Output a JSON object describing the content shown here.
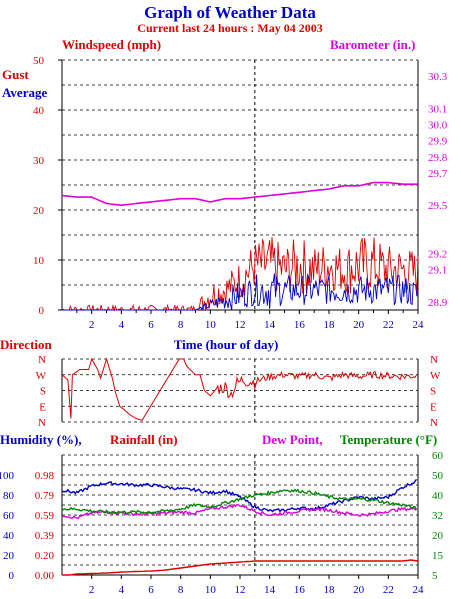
{
  "header": {
    "title": "Graph of Weather Data",
    "subtitle": "Current last 24 hours : May 04 2003"
  },
  "colors": {
    "red": "#dd0000",
    "blue": "#0000cc",
    "magenta": "#dd00dd",
    "green": "#008800",
    "grid": "#000000"
  },
  "chart_data": [
    {
      "type": "line",
      "name": "wind-barometer",
      "labels": {
        "left_title": "Windspeed (mph)",
        "right_title": "Barometer (in.)",
        "gust": "Gust",
        "average": "Average",
        "xlabel": "Time (hour of day)"
      },
      "x_ticks": [
        "2",
        "4",
        "6",
        "8",
        "10",
        "12",
        "14",
        "16",
        "18",
        "20",
        "22",
        "24"
      ],
      "xlim": [
        0,
        24
      ],
      "left_axis": {
        "ylim": [
          0,
          50
        ],
        "ticks": [
          "0",
          "10",
          "20",
          "30",
          "40",
          "50"
        ]
      },
      "right_axis": {
        "ylim": [
          28.85,
          30.4
        ],
        "ticks": [
          "28.9",
          "29.1",
          "29.2",
          "29.5",
          "29.7",
          "29.8",
          "29.9",
          "30.0",
          "30.1",
          "30.3"
        ]
      },
      "marker_hour": 13,
      "series": [
        {
          "name": "Gust",
          "color": "#dd0000",
          "axis": "left",
          "noisy": true,
          "x": [
            0,
            2,
            4,
            6,
            8,
            9,
            10,
            11,
            12,
            13,
            14,
            15,
            16,
            17,
            18,
            19,
            20,
            21,
            22,
            23,
            24
          ],
          "y": [
            0,
            0,
            0,
            0,
            0,
            0,
            3,
            4,
            6,
            9,
            9,
            8,
            9,
            8,
            9,
            8,
            9,
            9,
            8,
            8,
            7
          ],
          "spread": [
            1,
            1,
            1,
            1,
            1,
            1,
            3,
            3,
            4,
            5,
            6,
            5,
            6,
            5,
            5,
            5,
            6,
            6,
            5,
            5,
            5
          ]
        },
        {
          "name": "Average",
          "color": "#0000cc",
          "axis": "left",
          "noisy": true,
          "x": [
            0,
            2,
            4,
            6,
            8,
            9,
            10,
            11,
            12,
            13,
            14,
            15,
            16,
            17,
            18,
            19,
            20,
            21,
            22,
            23,
            24
          ],
          "y": [
            0,
            0,
            0,
            0,
            0,
            0,
            1,
            2,
            3,
            4,
            4,
            4,
            4,
            4,
            4,
            4,
            4,
            4,
            4,
            4,
            3
          ],
          "spread": [
            0,
            0,
            0,
            0,
            0,
            0,
            1,
            2,
            3,
            3,
            4,
            3,
            3,
            3,
            3,
            3,
            3,
            3,
            3,
            3,
            3
          ]
        },
        {
          "name": "Barometer",
          "color": "#dd00dd",
          "axis": "right",
          "noisy": false,
          "x": [
            0,
            1,
            2,
            3,
            4,
            5,
            6,
            7,
            8,
            9,
            10,
            11,
            12,
            13,
            14,
            15,
            16,
            17,
            18,
            19,
            20,
            21,
            22,
            23,
            24
          ],
          "y": [
            29.56,
            29.55,
            29.55,
            29.51,
            29.5,
            29.51,
            29.52,
            29.53,
            29.54,
            29.54,
            29.52,
            29.54,
            29.54,
            29.55,
            29.56,
            29.57,
            29.58,
            29.59,
            29.6,
            29.62,
            29.62,
            29.64,
            29.64,
            29.63,
            29.63
          ]
        }
      ]
    },
    {
      "type": "line",
      "name": "direction",
      "labels": {
        "title": "Direction"
      },
      "y_ticks": [
        "N",
        "W",
        "S",
        "E",
        "N"
      ],
      "ylim": [
        0,
        360
      ],
      "xlim": [
        0,
        24
      ],
      "marker_hour": 13,
      "series": [
        {
          "name": "Direction",
          "color": "#dd0000",
          "x": [
            0,
            0.4,
            0.6,
            0.7,
            1.2,
            1.8,
            2.0,
            2.4,
            2.6,
            3.0,
            3.4,
            3.6,
            3.9,
            4.2,
            4.6,
            5.0,
            5.4,
            7.9,
            8.2,
            8.4,
            9.0,
            9.3,
            9.6,
            10.0,
            10.4,
            11.0,
            11.4,
            11.8,
            12.2,
            13,
            14,
            15,
            16,
            17,
            18,
            19,
            20,
            21,
            22,
            23,
            24
          ],
          "y": [
            270,
            240,
            20,
            270,
            300,
            300,
            360,
            300,
            250,
            360,
            250,
            170,
            90,
            70,
            40,
            20,
            10,
            360,
            360,
            320,
            270,
            270,
            180,
            150,
            190,
            200,
            160,
            220,
            240,
            230,
            260,
            270,
            260,
            270,
            250,
            270,
            260,
            270,
            265,
            260,
            265
          ],
          "noisy_from": 10.5,
          "spread": 20
        }
      ]
    },
    {
      "type": "line",
      "name": "humidity-rain-temp",
      "labels": {
        "humidity": "Humidity (%),",
        "rainfall": "Rainfall (in)",
        "dewpoint": "Dew Point,",
        "temperature": "Temperature (°F)"
      },
      "x_ticks": [
        "2",
        "4",
        "6",
        "8",
        "10",
        "12",
        "14",
        "16",
        "18",
        "20",
        "22",
        "24"
      ],
      "xlim": [
        0,
        24
      ],
      "humidity_axis": {
        "ylim": [
          0,
          120
        ],
        "ticks": [
          "0",
          "20",
          "40",
          "60",
          "80",
          "100"
        ]
      },
      "rain_axis": {
        "ticks": [
          "0.00",
          "0.20",
          "0.39",
          "0.59",
          "0.79",
          "0.98"
        ]
      },
      "temp_axis": {
        "ylim": [
          5,
          60
        ],
        "ticks": [
          "5",
          "15",
          "20",
          "32",
          "40",
          "50",
          "60"
        ]
      },
      "marker_hour": 13,
      "series": [
        {
          "name": "Humidity",
          "color": "#0000cc",
          "axis": "humidity",
          "x": [
            0,
            1,
            2,
            3,
            4,
            5,
            6,
            7,
            8,
            9,
            10,
            11,
            12,
            13,
            14,
            15,
            16,
            17,
            18,
            19,
            20,
            21,
            22,
            23,
            24
          ],
          "y": [
            85,
            82,
            89,
            92,
            91,
            90,
            90,
            88,
            86,
            85,
            82,
            84,
            78,
            68,
            64,
            65,
            67,
            66,
            70,
            74,
            78,
            76,
            78,
            88,
            95
          ]
        },
        {
          "name": "Rainfall",
          "color": "#dd0000",
          "axis": "humidity",
          "x": [
            0,
            0.5,
            1,
            2,
            3,
            4,
            5,
            6,
            7,
            8,
            9,
            10,
            11,
            12,
            13,
            14,
            15,
            16,
            17,
            18,
            19,
            20,
            21,
            22,
            23,
            23.5,
            24
          ],
          "y": [
            0,
            0,
            1,
            1.5,
            2,
            3,
            3.5,
            4,
            5,
            7,
            9,
            11,
            12,
            13,
            14,
            14,
            14,
            14,
            14,
            14,
            14,
            14,
            14,
            14,
            14,
            15,
            14
          ]
        },
        {
          "name": "Dew Point",
          "color": "#dd00dd",
          "axis": "humidity",
          "x": [
            0,
            1,
            2,
            3,
            4,
            5,
            6,
            7,
            8,
            9,
            10,
            11,
            12,
            13,
            14,
            15,
            16,
            17,
            18,
            19,
            20,
            21,
            22,
            23,
            24
          ],
          "y": [
            60,
            57,
            62,
            63,
            62,
            61,
            61,
            62,
            63,
            62,
            66,
            68,
            70,
            64,
            60,
            62,
            64,
            66,
            65,
            62,
            60,
            61,
            64,
            66,
            66
          ]
        },
        {
          "name": "Temperature",
          "color": "#008800",
          "axis": "humidity",
          "x": [
            0,
            1,
            2,
            3,
            4,
            5,
            6,
            7,
            8,
            9,
            10,
            11,
            12,
            13,
            14,
            15,
            16,
            17,
            18,
            19,
            20,
            21,
            22,
            23,
            24
          ],
          "y": [
            66,
            66,
            64,
            63,
            63,
            63,
            63,
            64,
            66,
            70,
            68,
            72,
            76,
            80,
            82,
            85,
            84,
            82,
            78,
            76,
            76,
            75,
            72,
            70,
            66
          ]
        }
      ]
    }
  ]
}
